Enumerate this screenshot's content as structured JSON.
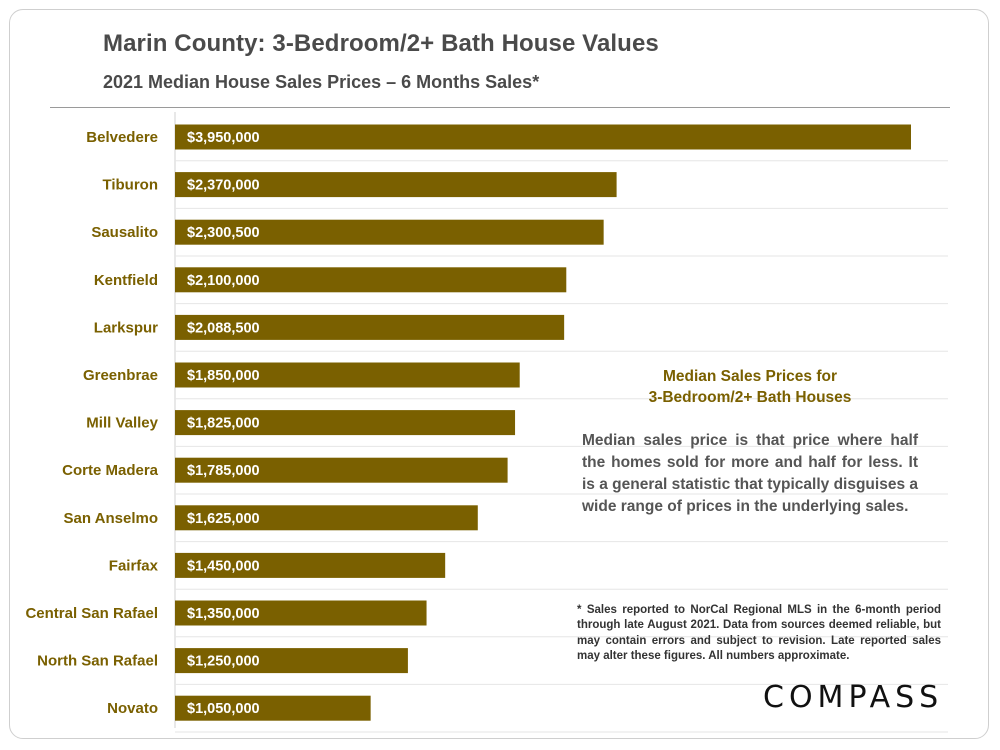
{
  "header": {
    "title": "Marin County: 3-Bedroom/2+ Bath House Values",
    "subtitle": "2021 Median House Sales Prices – 6 Months Sales*"
  },
  "chart_data": {
    "type": "bar",
    "orientation": "horizontal",
    "title": "Marin County: 3-Bedroom/2+ Bath House Values",
    "subtitle": "2021 Median House Sales Prices – 6 Months Sales*",
    "categories": [
      "Belvedere",
      "Tiburon",
      "Sausalito",
      "Kentfield",
      "Larkspur",
      "Greenbrae",
      "Mill Valley",
      "Corte Madera",
      "San Anselmo",
      "Fairfax",
      "Central San Rafael",
      "North San Rafael",
      "Novato"
    ],
    "values": [
      3950000,
      2370000,
      2300500,
      2100000,
      2088500,
      1850000,
      1825000,
      1785000,
      1625000,
      1450000,
      1350000,
      1250000,
      1050000
    ],
    "value_labels": [
      "$3,950,000",
      "$2,370,000",
      "$2,300,500",
      "$2,100,000",
      "$2,088,500",
      "$1,850,000",
      "$1,825,000",
      "$1,785,000",
      "$1,625,000",
      "$1,450,000",
      "$1,350,000",
      "$1,250,000",
      "$1,050,000"
    ],
    "xlim": [
      0,
      3950000
    ],
    "grid": true,
    "legend": "none",
    "bar_color": "#7a6000",
    "label_color": "#7a6000"
  },
  "annotation": {
    "heading_line1": "Median Sales Prices for",
    "heading_line2": "3-Bedroom/2+ Bath Houses",
    "body": "Median sales price is that price where half the homes sold for more and half for less. It is a general statistic that typically disguises a wide range of prices in the underlying sales."
  },
  "footnote": "* Sales reported to NorCal Regional MLS in the 6-month period through late August 2021. Data from sources deemed reliable, but may contain errors and subject to revision. Late reported sales may alter these figures. All numbers approximate.",
  "brand": {
    "logo_text": "COMPASS"
  }
}
